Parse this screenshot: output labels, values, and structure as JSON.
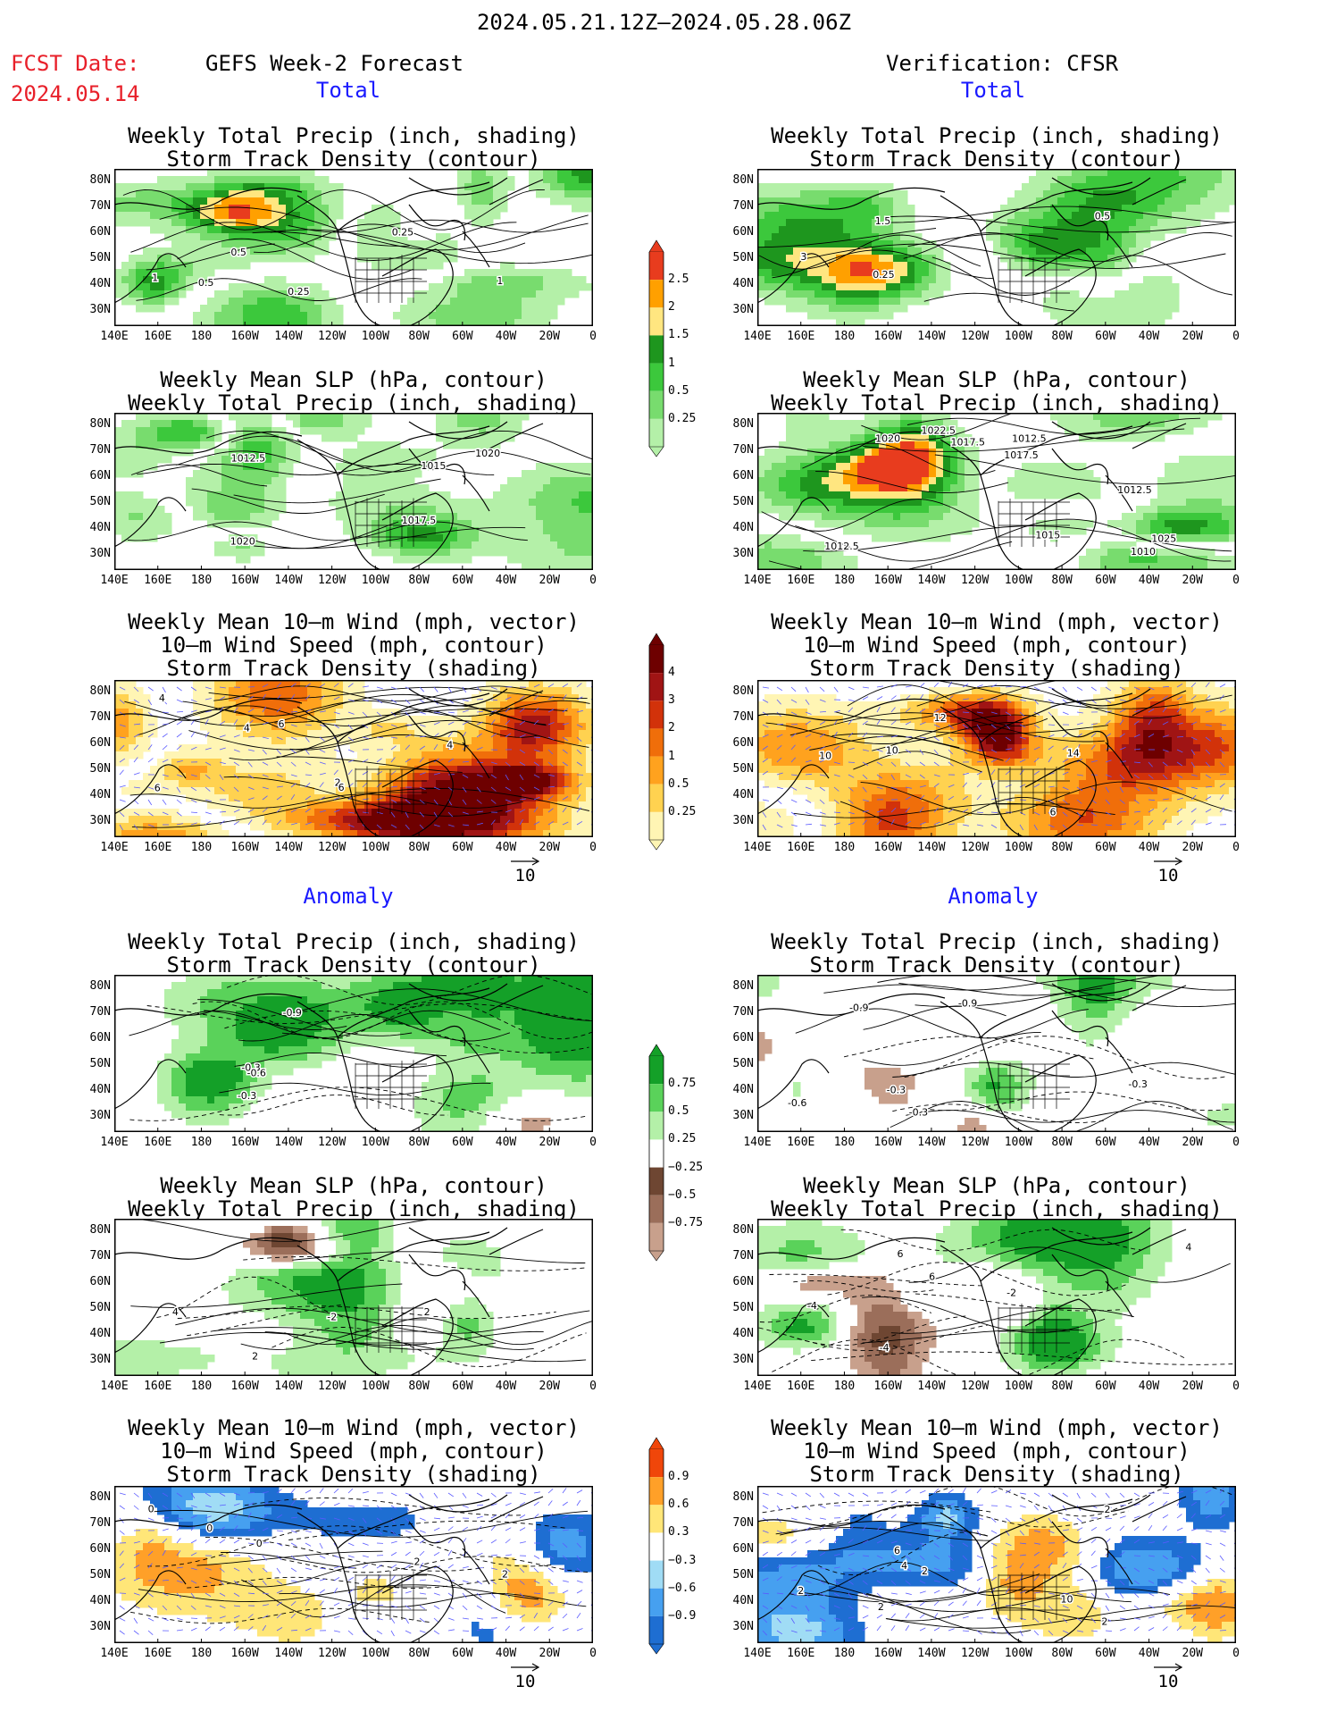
{
  "header": {
    "period": "2024.05.21.12Z–2024.05.28.06Z",
    "fcst_label": "FCST Date:",
    "fcst_date": "2024.05.14",
    "left_title": "GEFS Week-2 Forecast",
    "right_title": "Verification: CFSR",
    "section_total": "Total",
    "section_anomaly": "Anomaly"
  },
  "lat_labels": [
    "80N",
    "70N",
    "60N",
    "50N",
    "40N",
    "30N"
  ],
  "lon_labels": [
    "140E",
    "160E",
    "180",
    "160W",
    "140W",
    "120W",
    "100W",
    "80W",
    "60W",
    "40W",
    "20W",
    "0"
  ],
  "vector_ref": "10",
  "colors": {
    "precip": [
      "#b4f0a8",
      "#78dc6e",
      "#3cc83c",
      "#1e961e",
      "#ffe680",
      "#ffa000",
      "#e83c1e"
    ],
    "wind_total": [
      "#fff5b4",
      "#ffd250",
      "#ffa21e",
      "#f06e0a",
      "#d2320a",
      "#a01414",
      "#6e0000"
    ],
    "precip_anom": [
      "#c8a08c",
      "#9b6e5a",
      "#6e4632",
      "#ffffff",
      "#b4f0a8",
      "#5ad25a",
      "#14a028"
    ],
    "wind_anom": [
      "#1e6ed2",
      "#46a0f0",
      "#a0dcf5",
      "#ffffff",
      "#ffe678",
      "#ffa028",
      "#f0460a"
    ]
  },
  "colorbars": [
    {
      "name": "precip-total",
      "labels": [
        "2.5",
        "2",
        "1.5",
        "1",
        "0.5",
        "0.25"
      ]
    },
    {
      "name": "wind-total",
      "labels": [
        "4",
        "3",
        "2",
        "1",
        "0.5",
        "0.25"
      ]
    },
    {
      "name": "precip-anomaly",
      "labels": [
        "0.75",
        "0.5",
        "0.25",
        "−0.25",
        "−0.5",
        "−0.75"
      ]
    },
    {
      "name": "wind-anomaly",
      "labels": [
        "0.9",
        "0.6",
        "0.3",
        "−0.3",
        "−0.6",
        "−0.9"
      ]
    }
  ],
  "panels": [
    {
      "id": "l1",
      "kind": "precip",
      "title1": "Weekly Total Precip (inch, shading)",
      "title2": "Storm Track Density (contour)",
      "title3": "",
      "clabels": [
        "0.5",
        "1",
        "0.25",
        "0.25",
        "1",
        "0.5"
      ]
    },
    {
      "id": "r1",
      "kind": "precip",
      "title1": "Weekly Total Precip (inch, shading)",
      "title2": "Storm Track Density (contour)",
      "title3": "",
      "clabels": [
        "0.25",
        "0.5",
        "3",
        "1.5"
      ]
    },
    {
      "id": "l2",
      "kind": "precip",
      "title1": "Weekly Mean SLP (hPa, contour)",
      "title2": "Weekly Total Precip (inch, shading)",
      "title3": "",
      "clabels": [
        "1020",
        "1017.5",
        "1015",
        "1020",
        "1012.5"
      ]
    },
    {
      "id": "r2",
      "kind": "precip",
      "title1": "Weekly Mean SLP (hPa, contour)",
      "title2": "Weekly Total Precip (inch, shading)",
      "title3": "",
      "clabels": [
        "1020",
        "1017.5",
        "1022.5",
        "1017.5",
        "1010",
        "1012.5",
        "1015",
        "1012.5",
        "1012.5",
        "1025"
      ]
    },
    {
      "id": "l3",
      "kind": "wind",
      "title1": "Weekly Mean 10–m Wind (mph, vector)",
      "title2": "10–m Wind Speed (mph, contour)",
      "title3": "Storm Track Density (shading)",
      "clabels": [
        "4",
        "2",
        "6",
        "4",
        "6",
        "4",
        "6"
      ]
    },
    {
      "id": "r3",
      "kind": "wind",
      "title1": "Weekly Mean 10–m Wind (mph, vector)",
      "title2": "10–m Wind Speed (mph, contour)",
      "title3": "Storm Track Density (shading)",
      "clabels": [
        "10",
        "12",
        "14",
        "6",
        "10"
      ]
    },
    {
      "id": "l4",
      "kind": "panom",
      "title1": "Weekly Total Precip (inch, shading)",
      "title2": "Storm Track Density (contour)",
      "title3": "",
      "clabels": [
        "-0.3",
        "-0.6",
        "-0.9",
        "-0.3"
      ]
    },
    {
      "id": "r4",
      "kind": "panom",
      "title1": "Weekly Total Precip (inch, shading)",
      "title2": "Storm Track Density (contour)",
      "title3": "",
      "clabels": [
        "-0.3",
        "-0.9",
        "-0.6",
        "-0.3",
        "-0.3",
        "-0.9"
      ]
    },
    {
      "id": "l5",
      "kind": "panom",
      "title1": "Weekly Mean SLP (hPa, contour)",
      "title2": "Weekly Total Precip (inch, shading)",
      "title3": "",
      "clabels": [
        "2",
        "4",
        "2",
        "-2"
      ]
    },
    {
      "id": "r5",
      "kind": "panom",
      "title1": "Weekly Mean SLP (hPa, contour)",
      "title2": "Weekly Total Precip (inch, shading)",
      "title3": "",
      "clabels": [
        "6",
        "4",
        "6",
        "-4",
        "-2",
        "-4"
      ]
    },
    {
      "id": "l6",
      "kind": "wanom",
      "title1": "Weekly Mean 10–m Wind (mph, vector)",
      "title2": "10–m Wind Speed (mph, contour)",
      "title3": "Storm Track Density (shading)",
      "clabels": [
        "0",
        "2",
        "0",
        "2",
        "0"
      ]
    },
    {
      "id": "r6",
      "kind": "wanom",
      "title1": "Weekly Mean 10–m Wind (mph, vector)",
      "title2": "10–m Wind Speed (mph, contour)",
      "title3": "Storm Track Density (shading)",
      "clabels": [
        "4",
        "2",
        "10",
        "6",
        "2",
        "2",
        "2",
        "2"
      ]
    }
  ]
}
